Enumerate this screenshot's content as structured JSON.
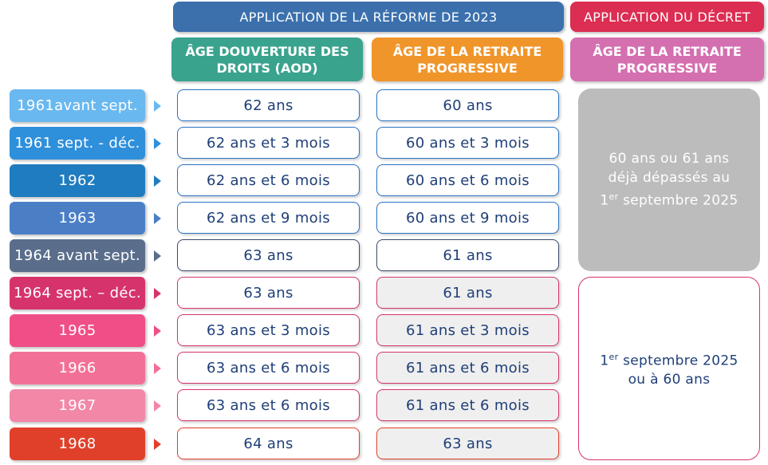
{
  "headers": {
    "reform": "APPLICATION DE LA RÉFORME DE 2023",
    "decree": "APPLICATION DU DÉCRET",
    "aod": "ÂGE DOUVERTURE DES DROITS (AOD)",
    "progressive": "ÂGE DE LA RETRAITE PROGRESSIVE",
    "decree_progressive": "ÂGE DE LA RETRAITE PROGRESSIVE"
  },
  "rows": [
    {
      "label": "1961avant sept.",
      "aod": "62 ans",
      "progressive": "60 ans"
    },
    {
      "label": "1961 sept. - déc.",
      "aod": "62 ans et 3 mois",
      "progressive": "60 ans et 3 mois"
    },
    {
      "label": "1962",
      "aod": "62 ans et 6 mois",
      "progressive": "60 ans et 6 mois"
    },
    {
      "label": "1963",
      "aod": "62 ans et 9 mois",
      "progressive": "60 ans et 9 mois"
    },
    {
      "label": "1964 avant sept.",
      "aod": "63 ans",
      "progressive": "61 ans"
    },
    {
      "label": "1964 sept. – déc.",
      "aod": "63 ans",
      "progressive": "61 ans"
    },
    {
      "label": "1965",
      "aod": "63 ans et 3 mois",
      "progressive": "61 ans et 3 mois"
    },
    {
      "label": "1966",
      "aod": "63 ans et 6 mois",
      "progressive": "61 ans et 6 mois"
    },
    {
      "label": "1967",
      "aod": "63 ans et 6 mois",
      "progressive": "61 ans et 6 mois"
    },
    {
      "label": "1968",
      "aod": "64 ans",
      "progressive": "63 ans"
    }
  ],
  "decree_cells": {
    "grey_line1": "60 ans ou 61 ans",
    "grey_line2": "déjà dépassés au",
    "grey_line3_sup": "er",
    "grey_line3_pre": "1",
    "grey_line3_post": " septembre 2025",
    "white_line1_pre": "1",
    "white_line1_sup": "er",
    "white_line1_post": " septembre 2025",
    "white_line2": "ou à 60 ans"
  },
  "colors": {
    "reform_header": "#3b70ad",
    "decree_header": "#dc2d52",
    "aod_header": "#3aa38e",
    "progressive_header": "#f0952a",
    "decree_sub_header": "#d46fb0",
    "row_colors": [
      "#6ab8f0",
      "#2e8fdb",
      "#1f7cc0",
      "#4a7fc6",
      "#5a6e8c",
      "#d6336c",
      "#f04e86",
      "#f27097",
      "#f287a8",
      "#e0402a"
    ]
  }
}
